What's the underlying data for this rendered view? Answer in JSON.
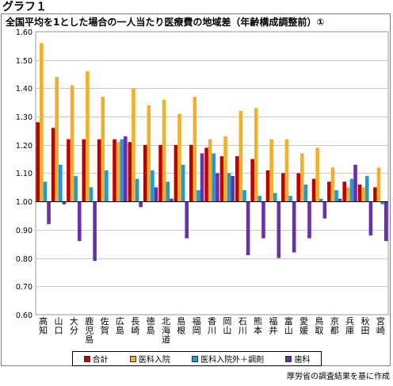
{
  "graph_label": "グラフ１",
  "source_note": "厚労省の調査結果を基に作成",
  "chart_data": {
    "type": "bar",
    "title": "全国平均を1とした場合の一人当たり医療費の地域差（年齢構成調整前）①",
    "xlabel": "",
    "ylabel": "",
    "ylim": [
      0.6,
      1.6
    ],
    "yticks": [
      "0.60",
      "0.70",
      "0.80",
      "0.90",
      "1.00",
      "1.10",
      "1.20",
      "1.30",
      "1.40",
      "1.50",
      "1.60"
    ],
    "baseline": 1.0,
    "grid": true,
    "legend_position": "bottom",
    "categories": [
      "高知",
      "山口",
      "大分",
      "鹿児島",
      "佐賀",
      "広島",
      "長崎",
      "徳島",
      "北海道",
      "島根",
      "福岡",
      "香川",
      "岡山",
      "石川",
      "熊本",
      "福井",
      "富山",
      "愛媛",
      "鳥取",
      "京都",
      "兵庫",
      "秋田",
      "宮崎"
    ],
    "series": [
      {
        "name": "合計",
        "color": "#c00000",
        "values": [
          1.28,
          1.26,
          1.22,
          1.22,
          1.22,
          1.22,
          1.21,
          1.2,
          1.2,
          1.2,
          1.2,
          1.19,
          1.16,
          1.16,
          1.15,
          1.11,
          1.1,
          1.1,
          1.08,
          1.07,
          1.07,
          1.06,
          1.05
        ]
      },
      {
        "name": "医科入院",
        "color": "#f0b02a",
        "values": [
          1.56,
          1.44,
          1.41,
          1.46,
          1.37,
          1.21,
          1.4,
          1.34,
          1.36,
          1.31,
          1.37,
          1.22,
          1.23,
          1.32,
          1.33,
          1.22,
          1.22,
          1.17,
          1.19,
          1.12,
          1.05,
          1.05,
          1.12
        ]
      },
      {
        "name": "医科入院外＋調剤",
        "color": "#1f9ad6",
        "values": [
          1.07,
          1.13,
          1.09,
          1.05,
          1.11,
          1.22,
          1.08,
          1.11,
          1.07,
          1.13,
          1.04,
          1.17,
          1.1,
          1.04,
          1.02,
          1.03,
          1.02,
          1.06,
          1.01,
          1.04,
          1.08,
          1.09,
          0.99
        ]
      },
      {
        "name": "歯科",
        "color": "#6b2fa8",
        "values": [
          0.92,
          0.99,
          0.86,
          0.79,
          1.0,
          1.23,
          0.98,
          1.05,
          1.01,
          0.87,
          1.17,
          1.1,
          1.09,
          0.81,
          0.87,
          0.8,
          0.82,
          0.87,
          0.94,
          1.01,
          1.13,
          0.88,
          0.86
        ]
      }
    ]
  }
}
